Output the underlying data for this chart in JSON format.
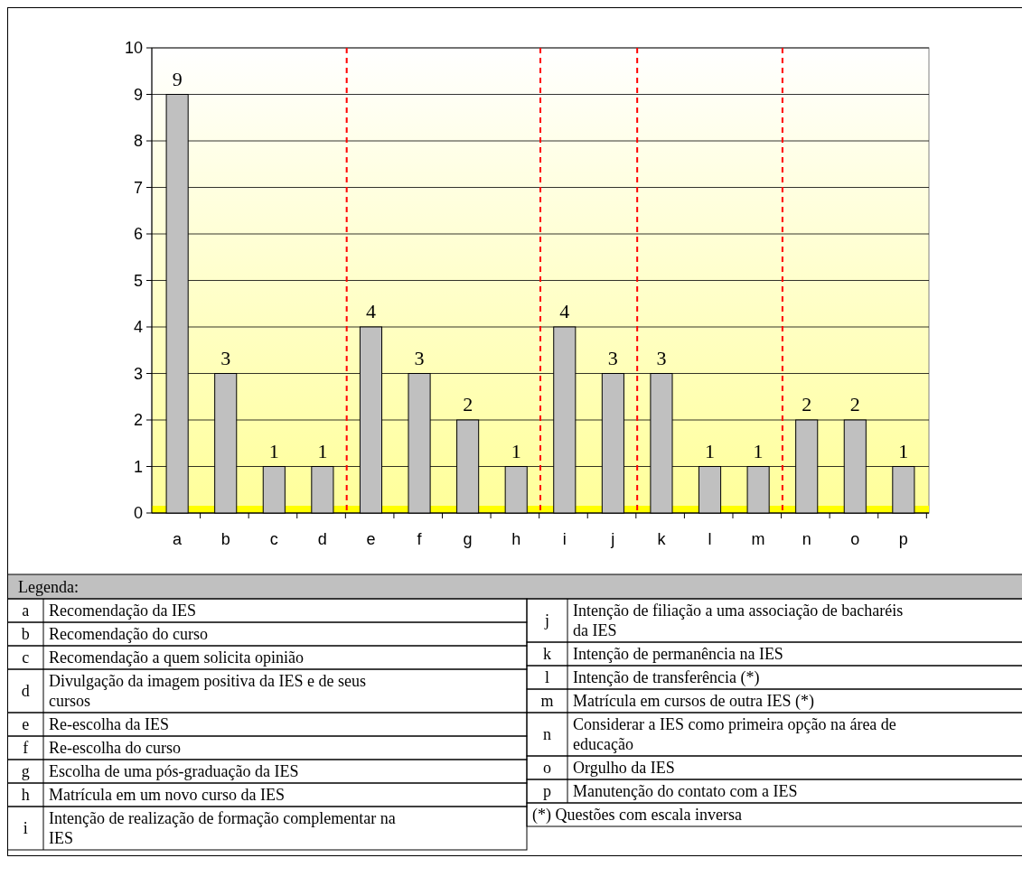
{
  "chart_data": {
    "type": "bar",
    "categories": [
      "a",
      "b",
      "c",
      "d",
      "e",
      "f",
      "g",
      "h",
      "i",
      "j",
      "k",
      "l",
      "m",
      "n",
      "o",
      "p"
    ],
    "values": [
      9,
      3,
      1,
      1,
      4,
      3,
      2,
      1,
      4,
      3,
      3,
      1,
      1,
      2,
      2,
      1
    ],
    "color": "#c0c0c0",
    "ylim": [
      0,
      10
    ],
    "yticks": [
      0,
      1,
      2,
      3,
      4,
      5,
      6,
      7,
      8,
      9,
      10
    ],
    "grid": "y",
    "data_labels": true,
    "legend_title": "Legenda:",
    "annotations": [
      "Recomendação da IES",
      "Recomendação do curso",
      "Recomendação a quem solicita opinião",
      "Divulgação da imagem positiva da IES e de seus cursos",
      "Re-escolha da IES",
      "Re-escolha do curso",
      "Escolha de uma pós-graduação da IES",
      "Matrícula em um novo curso da IES",
      "Intenção de realização de formação complementar na IES",
      "Intenção de filiação a uma associação de bacharéis da IES",
      "Intenção de permanência na IES",
      "Intenção de transferência (*)",
      "Matrícula em cursos de outra IES (*)",
      "Considerar a IES como primeira opção na área de educação",
      "Orgulho da IES",
      "Manutenção do contato com a IES",
      "(*) Questões com escala inversa"
    ]
  }
}
